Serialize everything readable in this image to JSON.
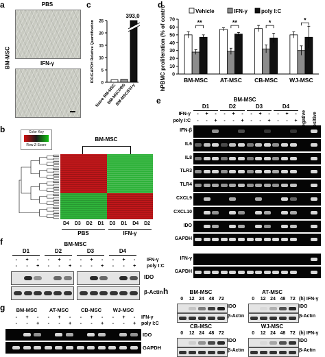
{
  "panels": {
    "a": "a",
    "b": "b",
    "c": "c",
    "d": "d",
    "e": "e",
    "f": "f",
    "g": "g",
    "h": "h"
  },
  "panel_a": {
    "side_label": "BM-MSC",
    "top_label": "PBS",
    "bottom_label": "IFN-γ"
  },
  "panel_b": {
    "color_key_title": "Color Key",
    "color_key_sub": "Row Z-Score",
    "heatmap_title": "BM-MSC",
    "columns": [
      "D4",
      "D3",
      "D2",
      "D1",
      "D3",
      "D1",
      "D4",
      "D2"
    ],
    "group_left": "PBS",
    "group_right": "IFN-γ"
  },
  "panel_e": {
    "title": "BM-MSC",
    "donors": [
      "D1",
      "D2",
      "D3",
      "D4"
    ],
    "ifn_label": "IFN-γ",
    "polyic_label": "poly I:C",
    "ifn_signs": [
      "-",
      "+",
      "-",
      "-",
      "+",
      "-",
      "-",
      "+",
      "-",
      "-",
      "+",
      "-"
    ],
    "polyic_signs": [
      "-",
      "-",
      "+",
      "-",
      "-",
      "+",
      "-",
      "-",
      "+",
      "-",
      "-",
      "+"
    ],
    "negative_label": "Negative",
    "positive_label": "Positive",
    "genes": [
      "IFN-β",
      "IL6",
      "IL8",
      "TLR3",
      "TLR4",
      "CXCL9",
      "CXCL10",
      "IDO",
      "GAPDH"
    ],
    "lower_genes": [
      "IFN-γ",
      "GAPDH"
    ]
  },
  "panel_f": {
    "title": "BM-MSC",
    "donors": [
      "D1",
      "D2",
      "D3",
      "D4"
    ],
    "ifn_label": "IFN-γ",
    "polyic_label": "poly I:C",
    "ifn_signs": [
      "-",
      "+",
      "-",
      "-",
      "+",
      "-",
      "-",
      "+",
      "-",
      "-",
      "+",
      "-"
    ],
    "polyic_signs": [
      "-",
      "-",
      "+",
      "-",
      "-",
      "+",
      "-",
      "-",
      "+",
      "-",
      "-",
      "+"
    ],
    "rows": [
      "IDO",
      "β-Actin"
    ]
  },
  "panel_g": {
    "groups": [
      "BM-MSC",
      "AT-MSC",
      "CB-MSC",
      "WJ-MSC"
    ],
    "ifn_label": "IFN-γ",
    "polyic_label": "poly I:C",
    "ifn_signs": [
      "-",
      "+",
      "-",
      "-",
      "+",
      "-",
      "-",
      "+",
      "-",
      "-",
      "+",
      "-"
    ],
    "polyic_signs": [
      "-",
      "-",
      "+",
      "-",
      "-",
      "+",
      "-",
      "-",
      "+",
      "-",
      "-",
      "+"
    ],
    "rows": [
      "IDO",
      "GAPDH"
    ]
  },
  "panel_h": {
    "blots": [
      {
        "title": "BM-MSC",
        "times": [
          "0",
          "12",
          "24",
          "48",
          "72"
        ]
      },
      {
        "title": "AT-MSC",
        "times": [
          "0",
          "12",
          "24",
          "48",
          "72"
        ],
        "unit": "(h) IFN-γ"
      },
      {
        "title": "CB-MSC",
        "times": [
          "0",
          "12",
          "24",
          "48",
          "72"
        ]
      },
      {
        "title": "WJ-MSC",
        "times": [
          "0",
          "12",
          "24",
          "48",
          "72"
        ],
        "unit": "(h) IFN-γ"
      }
    ],
    "rows": [
      "IDO",
      "β-Actin"
    ]
  },
  "chart_data": [
    {
      "type": "bar",
      "panel": "c",
      "ylabel": "IDO/GAPDH Relative Quantification",
      "categories": [
        "Naive BM-MSC",
        "BM-MSCPBS",
        "BM-MSCIFN-γ"
      ],
      "values": [
        1,
        1.2,
        393051
      ],
      "annotation": "393,051",
      "ylim": [
        0,
        25
      ],
      "axis_break": true,
      "yticks": [
        "0",
        "5",
        "10",
        "15",
        "20",
        "25"
      ],
      "colors": {
        "bars": "#111111",
        "naive": "#ffffff",
        "pbs": "#999999"
      }
    },
    {
      "type": "bar",
      "panel": "d",
      "ylabel": "hPBMC proliferation (% of control)",
      "ylim": [
        0,
        70
      ],
      "yticks": [
        "0",
        "10",
        "20",
        "30",
        "40",
        "50",
        "60",
        "70"
      ],
      "categories": [
        "BM-MSC",
        "AT-MSC",
        "CB-MSC",
        "WJ-MSC"
      ],
      "series": [
        {
          "name": "Vehicle",
          "values": [
            50,
            57,
            58,
            50
          ],
          "errors": [
            4,
            2,
            4,
            4
          ],
          "color": "#ffffff"
        },
        {
          "name": "IFN-γ",
          "values": [
            28,
            29,
            32,
            30
          ],
          "errors": [
            3,
            4,
            5,
            6
          ],
          "color": "#8c8c8c"
        },
        {
          "name": "poly I:C",
          "values": [
            47,
            51,
            46,
            47
          ],
          "errors": [
            3,
            2,
            6,
            14
          ],
          "color": "#111111"
        }
      ],
      "significance": [
        "**",
        "**",
        "*",
        "*"
      ]
    }
  ]
}
